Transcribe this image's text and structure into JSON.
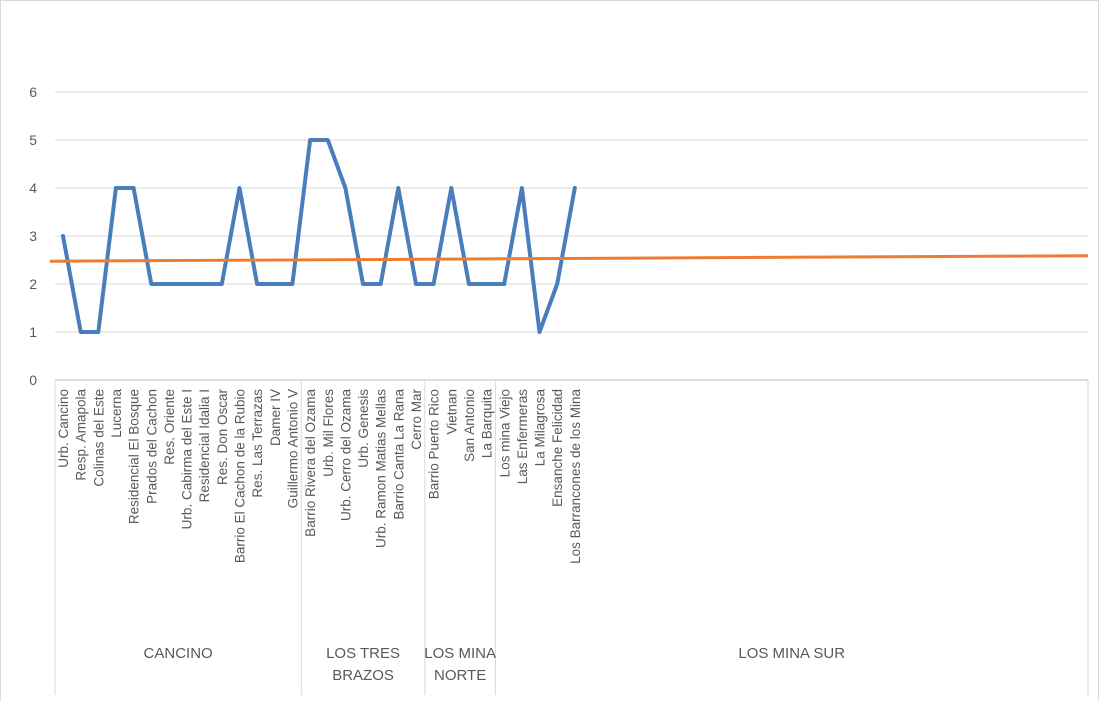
{
  "chart_data": {
    "type": "line",
    "title": "",
    "xlabel": "",
    "ylabel": "",
    "ylim": [
      0,
      6
    ],
    "yticks": [
      "0",
      "1",
      "2",
      "3",
      "4",
      "5",
      "6"
    ],
    "grid": "horizontal",
    "categories": [
      "Urb. Cancino",
      "Resp. Amapola",
      "Colinas del Este",
      "Lucerna",
      "Residencial El Bosque",
      "Prados del Cachon",
      "Res. Oriente",
      "Urb. Cabirma del Este I",
      "Residencial Idalia I",
      "Res. Don Oscar",
      "Barrio El Cachon de la Rubio",
      "Res. Las Terrazas",
      "Damer IV",
      "Guillermo Antonio V",
      "Barrio Rivera del Ozama",
      "Urb. Mil Flores",
      "Urb. Cerro del Ozama",
      "Urb. Genesis",
      "Urb. Ramon Matias Mellas",
      "Barrio Canta La Rana",
      "Cerro Mar",
      "Barrio Puerto Rico",
      "Vietnan",
      "San Antonio",
      "La Barquita",
      "Los mina Viejo",
      "Las Enfermeras",
      "La Milagrosa",
      "Ensanche Felicidad",
      "Los Barrancones de los Mina"
    ],
    "groups": [
      {
        "label": "CANCINO",
        "start": 0,
        "end": 13
      },
      {
        "label": "LOS TRES BRAZOS",
        "start": 14,
        "end": 20
      },
      {
        "label": "LOS MINA NORTE",
        "start": 21,
        "end": 24
      },
      {
        "label": "LOS MINA SUR",
        "start": 25,
        "end": 29
      }
    ],
    "series": [
      {
        "color": "#4a7ebb",
        "values": [
          3,
          1,
          1,
          4,
          4,
          2,
          2,
          2,
          2,
          2,
          4,
          2,
          2,
          2,
          5,
          5,
          4,
          2,
          2,
          4,
          2,
          2,
          4,
          2,
          2,
          2,
          4,
          1,
          2,
          4
        ]
      },
      {
        "color": "#ed7d31",
        "values": [
          2.48,
          2.49,
          2.49,
          2.5,
          2.5,
          2.51,
          2.51,
          2.51,
          2.52,
          2.52,
          2.52,
          2.53,
          2.53,
          2.53,
          2.54,
          2.54,
          2.54,
          2.55,
          2.55,
          2.56,
          2.56,
          2.56,
          2.57,
          2.57,
          2.57,
          2.58,
          2.58,
          2.58,
          2.59,
          2.59
        ]
      }
    ]
  }
}
